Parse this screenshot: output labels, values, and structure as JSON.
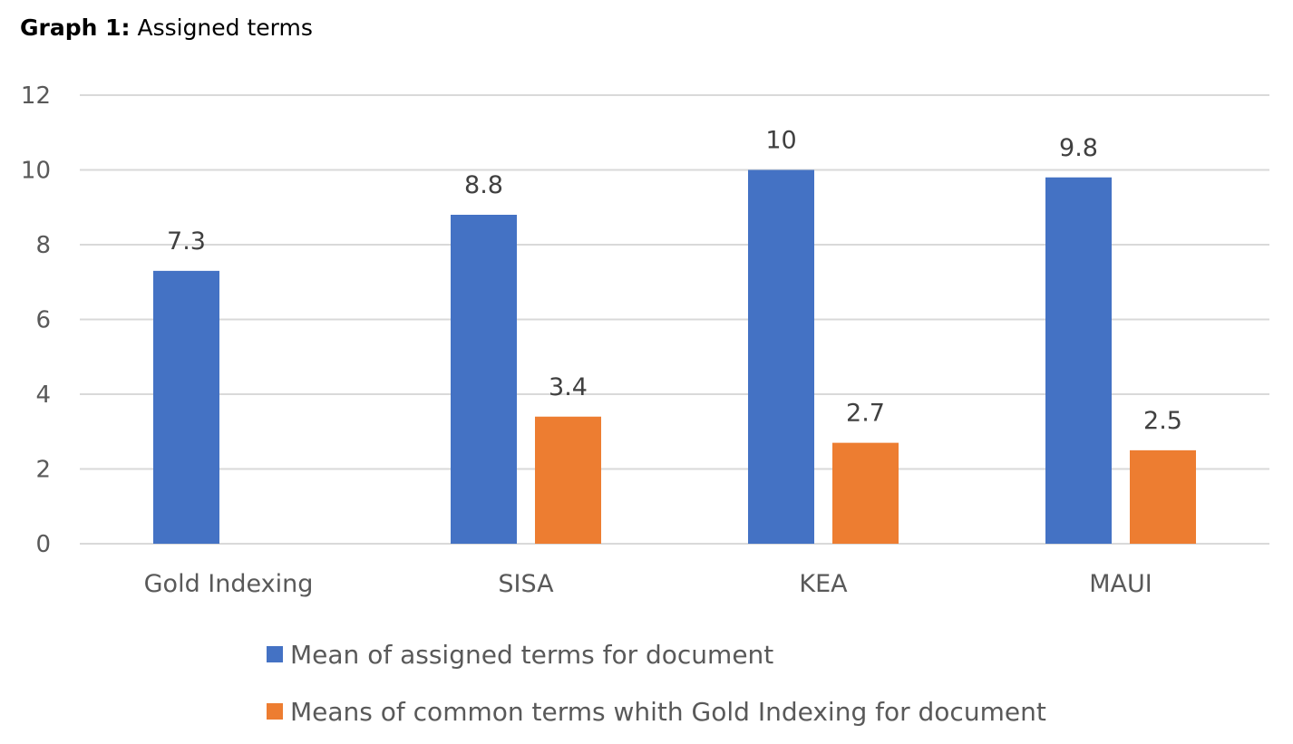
{
  "figure": {
    "title_prefix": "Graph 1:",
    "title_text": "Assigned terms"
  },
  "chart_data": {
    "type": "bar",
    "categories": [
      "Gold Indexing",
      "SISA",
      "KEA",
      "MAUI"
    ],
    "series": [
      {
        "name": "Mean of assigned terms for document",
        "color": "#4472c4",
        "values": [
          7.3,
          8.8,
          10,
          9.8
        ],
        "labels": [
          "7.3",
          "8.8",
          "10",
          "9.8"
        ]
      },
      {
        "name": "Means of common terms whith Gold Indexing for document",
        "color": "#ed7d31",
        "values": [
          null,
          3.4,
          2.7,
          2.5
        ],
        "labels": [
          null,
          "3.4",
          "2.7",
          "2.5"
        ]
      }
    ],
    "ylim": [
      0,
      12
    ],
    "yticks": [
      0,
      2,
      4,
      6,
      8,
      10,
      12
    ],
    "grid": true,
    "legend_position": "bottom"
  }
}
